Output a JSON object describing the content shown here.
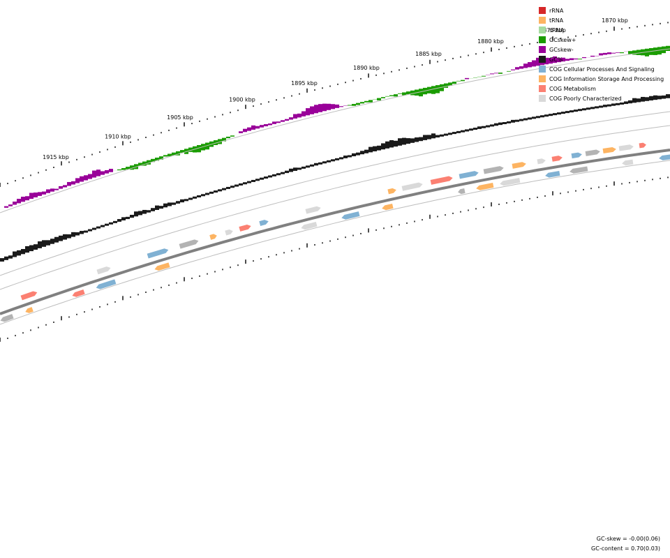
{
  "legend": [
    {
      "label": "rRNA",
      "color": "#d62728"
    },
    {
      "label": "tRNA",
      "color": "#fdb462"
    },
    {
      "label": "sRNA",
      "color": "#a6dba0"
    },
    {
      "label": "GCskew+",
      "color": "#1a9c00"
    },
    {
      "label": "GCskew-",
      "color": "#990099"
    },
    {
      "label": "GC%",
      "color": "#1a1a1a"
    },
    {
      "label": "COG Cellular Processes And Signaling",
      "color": "#80b1d3"
    },
    {
      "label": "COG Information Storage And Processing",
      "color": "#fdb462"
    },
    {
      "label": "COG Metabolism",
      "color": "#fb8072"
    },
    {
      "label": "COG Poorly Characterized",
      "color": "#d9d9d9"
    }
  ],
  "ruler": {
    "unit": "kbp",
    "labels": [
      {
        "kbp": 1915,
        "text": "1915 kbp"
      },
      {
        "kbp": 1910,
        "text": "1910 kbp"
      },
      {
        "kbp": 1905,
        "text": "1905 kbp"
      },
      {
        "kbp": 1900,
        "text": "1900 kbp"
      },
      {
        "kbp": 1895,
        "text": "1895 kbp"
      },
      {
        "kbp": 1890,
        "text": "1890 kbp"
      },
      {
        "kbp": 1885,
        "text": "1885 kbp"
      },
      {
        "kbp": 1880,
        "text": "1880 kbp"
      },
      {
        "kbp": 1875,
        "text": "1875 kbp"
      },
      {
        "kbp": 1870,
        "text": "1870 kbp"
      }
    ]
  },
  "stats": {
    "gc_skew": "GC-skew = -0.00(0.06)",
    "gc_content": "GC-content = 0.70(0.03)"
  },
  "colors": {
    "skew_pos": "#1a9c00",
    "skew_neg": "#990099",
    "gc": "#1a1a1a",
    "backbone": "#808080",
    "ring": "#bdbdbd",
    "cog_cellular": "#80b1d3",
    "cog_info": "#fdb462",
    "cog_metab": "#fb8072",
    "cog_poor": "#d9d9d9",
    "unclassified": "#b3b3b3"
  }
}
